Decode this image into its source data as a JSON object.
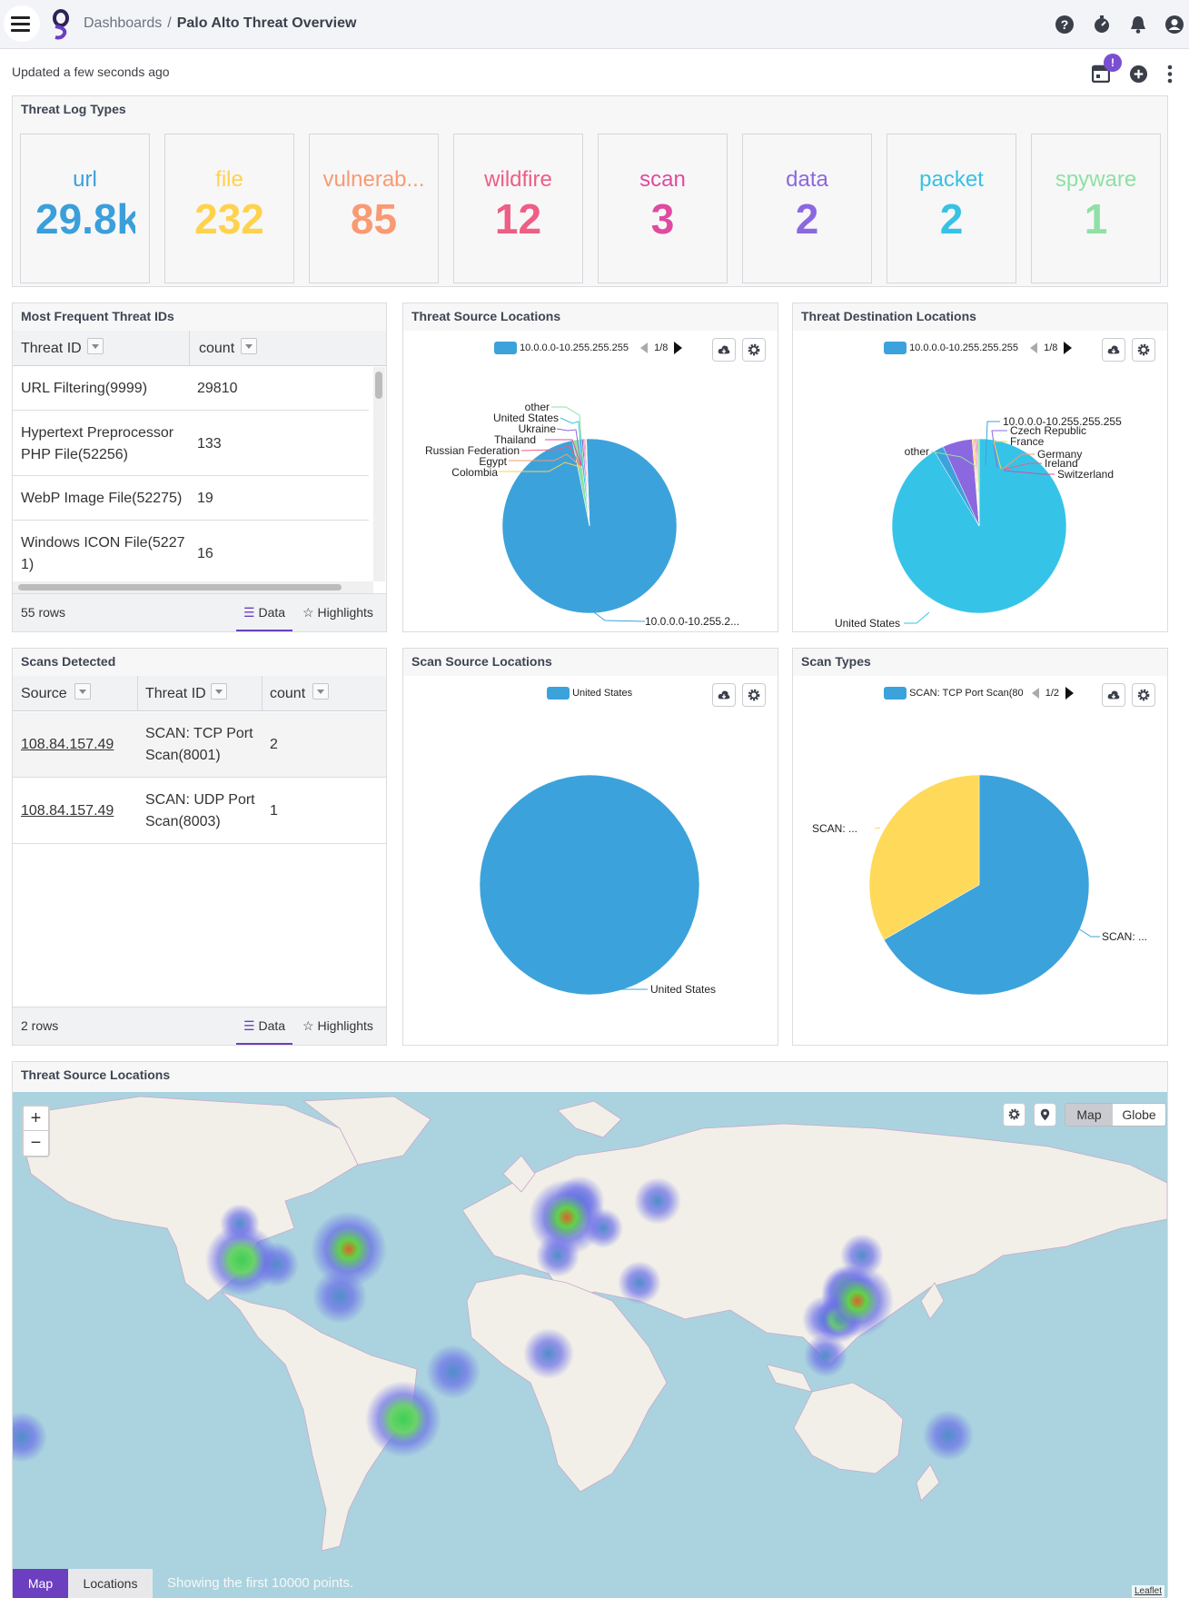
{
  "header": {
    "breadcrumb_root": "Dashboards",
    "breadcrumb_sep": "/",
    "page_title": "Palo Alto Threat Overview"
  },
  "subbar": {
    "updated": "Updated a few seconds ago",
    "badge": "!"
  },
  "colors": {
    "accent": "#6b3fbf",
    "blue": "#3ca2db",
    "cyan": "#35c4e8",
    "yellow": "#ffd95a"
  },
  "panels": {
    "log_types": {
      "title": "Threat Log Types",
      "tiles": [
        {
          "label": "url",
          "value": "29.8k",
          "color": "#3a9fda"
        },
        {
          "label": "file",
          "value": "232",
          "color": "#ffd24d"
        },
        {
          "label": "vulnerab...",
          "value": "85",
          "color": "#f99a72"
        },
        {
          "label": "wildfire",
          "value": "12",
          "color": "#ee5e85"
        },
        {
          "label": "scan",
          "value": "3",
          "color": "#e04aa0"
        },
        {
          "label": "data",
          "value": "2",
          "color": "#8b68df"
        },
        {
          "label": "packet",
          "value": "2",
          "color": "#35c2e4"
        },
        {
          "label": "spyware",
          "value": "1",
          "color": "#8fe0a4"
        }
      ]
    },
    "threat_ids": {
      "title": "Most Frequent Threat IDs",
      "col1": "Threat ID",
      "col2": "count",
      "rows": [
        {
          "id": "URL Filtering(9999)",
          "count": "29810"
        },
        {
          "id_l1": "Hypertext Preprocessor",
          "id_l2": "PHP File(52256)",
          "count": "133"
        },
        {
          "id": "WebP Image File(52275)",
          "count": "19"
        },
        {
          "id_l1": "Windows ICON File(5227",
          "id_l2": "1)",
          "count": "16"
        }
      ],
      "rows_count": "55 rows",
      "tab_data": "Data",
      "tab_high": "Highlights"
    },
    "src_loc": {
      "title": "Threat Source Locations",
      "legend": "10.0.0.0-10.255.255.255",
      "page": "1/8",
      "labels": [
        "other",
        "United States",
        "Ukraine",
        "Thailand",
        "Russian Federation",
        "Egypt",
        "Colombia",
        "10.0.0.0-10.255.2..."
      ]
    },
    "dst_loc": {
      "title": "Threat Destination Locations",
      "legend": "10.0.0.0-10.255.255.255",
      "page": "1/8",
      "labels": [
        "10.0.0.0-10.255.255.255",
        "Czech Republic",
        "France",
        "Germany",
        "Ireland",
        "Switzerland",
        "other",
        "United States"
      ]
    },
    "scans": {
      "title": "Scans Detected",
      "col1": "Source",
      "col2": "Threat ID",
      "col3": "count",
      "rows": [
        {
          "src": "108.84.157.49",
          "t1": "SCAN: TCP Port",
          "t2": "Scan(8001)",
          "count": "2"
        },
        {
          "src": "108.84.157.49",
          "t1": "SCAN: UDP Port",
          "t2": "Scan(8003)",
          "count": "1"
        }
      ],
      "rows_count": "2 rows",
      "tab_data": "Data",
      "tab_high": "Highlights"
    },
    "scan_src": {
      "title": "Scan Source Locations",
      "legend": "United States",
      "label": "United States"
    },
    "scan_types": {
      "title": "Scan Types",
      "legend": "SCAN: TCP Port Scan(80",
      "page": "1/2",
      "label_a": "SCAN: ...",
      "label_b": "SCAN: ..."
    },
    "map": {
      "title": "Threat Source Locations",
      "zoom_in": "+",
      "zoom_out": "−",
      "mode_map": "Map",
      "mode_globe": "Globe",
      "tab_map": "Map",
      "tab_locations": "Locations",
      "note": "Showing the first 10000 points.",
      "attribution": "Leaflet"
    }
  },
  "chart_data": [
    {
      "type": "pie",
      "title": "Threat Source Locations",
      "categories": [
        "10.0.0.0-10.255.255.255",
        "other",
        "United States",
        "Ukraine",
        "Thailand",
        "Russian Federation",
        "Egypt",
        "Colombia"
      ],
      "values": [
        97.4,
        1.2,
        0.5,
        0.3,
        0.2,
        0.2,
        0.1,
        0.1
      ]
    },
    {
      "type": "pie",
      "title": "Threat Destination Locations",
      "categories": [
        "United States",
        "10.0.0.0-10.255.255.255",
        "Czech Republic",
        "France",
        "Germany",
        "Ireland",
        "Switzerland",
        "other"
      ],
      "values": [
        91.4,
        1.8,
        5.5,
        0.3,
        0.2,
        0.2,
        0.2,
        0.4
      ]
    },
    {
      "type": "pie",
      "title": "Scan Source Locations",
      "categories": [
        "United States"
      ],
      "values": [
        100
      ]
    },
    {
      "type": "pie",
      "title": "Scan Types",
      "categories": [
        "SCAN: TCP Port Scan(8001)",
        "SCAN: UDP Port Scan(8003)"
      ],
      "values": [
        2,
        1
      ]
    }
  ]
}
